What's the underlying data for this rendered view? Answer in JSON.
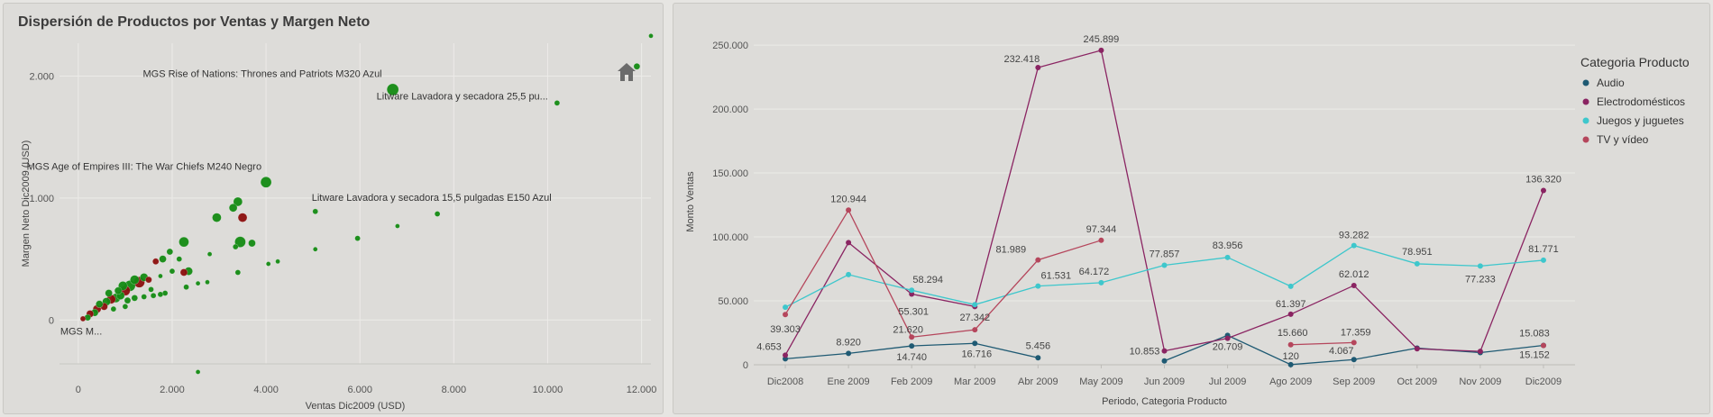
{
  "panels": {
    "scatter_title": "Dispersión de Productos por Ventas y Margen Neto",
    "line_title": ""
  },
  "chart_data": [
    {
      "type": "scatter",
      "title": "Dispersión de Productos por Ventas y Margen Neto",
      "xlabel": "Ventas Dic2009 (USD)",
      "ylabel": "Margen Neto Dic2009 (USD)",
      "xlim": [
        -400,
        12200
      ],
      "ylim": [
        -360,
        2270
      ],
      "xticks": [
        0,
        2000,
        4000,
        6000,
        8000,
        10000,
        12000
      ],
      "xtick_labels": [
        "0",
        "2.000",
        "4.000",
        "6.000",
        "8.000",
        "10.000",
        "12.000"
      ],
      "yticks": [
        0,
        1000,
        2000
      ],
      "ytick_labels": [
        "0",
        "1.000",
        "2.000"
      ],
      "colors": {
        "green": "#138a13",
        "red": "#8b0e0e"
      },
      "annotations": [
        {
          "text": "MGS Rise of Nations: Thrones and Patriots M320 Azul",
          "x": 6700,
          "y": 1890
        },
        {
          "text": "Litware Lavadora y secadora 25,5 pu...",
          "x": 10200,
          "y": 1780
        },
        {
          "text": "MGS Age of Empires III: The War Chiefs M240 Negro",
          "x": 4000,
          "y": 1130
        },
        {
          "text": "Litware Lavadora y secadora 15,5 pulgadas E150 Azul",
          "x": 5050,
          "y": 890
        },
        {
          "text": "MGS M...",
          "x": 0,
          "y": 0
        }
      ],
      "points": [
        {
          "x": 6700,
          "y": 1890,
          "s": 6.5,
          "c": "green"
        },
        {
          "x": 11900,
          "y": 2080,
          "s": 3.5,
          "c": "green"
        },
        {
          "x": 12200,
          "y": 2330,
          "s": 2.5,
          "c": "green"
        },
        {
          "x": 10200,
          "y": 1780,
          "s": 3,
          "c": "green"
        },
        {
          "x": 4000,
          "y": 1130,
          "s": 6,
          "c": "green"
        },
        {
          "x": 5050,
          "y": 890,
          "s": 3,
          "c": "green"
        },
        {
          "x": 7650,
          "y": 870,
          "s": 3,
          "c": "green"
        },
        {
          "x": 6800,
          "y": 770,
          "s": 2.5,
          "c": "green"
        },
        {
          "x": 5950,
          "y": 670,
          "s": 3,
          "c": "green"
        },
        {
          "x": 5050,
          "y": 580,
          "s": 2.5,
          "c": "green"
        },
        {
          "x": 4250,
          "y": 480,
          "s": 2.5,
          "c": "green"
        },
        {
          "x": 4050,
          "y": 460,
          "s": 2.5,
          "c": "green"
        },
        {
          "x": 3400,
          "y": 970,
          "s": 5,
          "c": "green"
        },
        {
          "x": 3300,
          "y": 920,
          "s": 4.5,
          "c": "green"
        },
        {
          "x": 3500,
          "y": 840,
          "s": 5,
          "c": "red"
        },
        {
          "x": 2950,
          "y": 840,
          "s": 5,
          "c": "green"
        },
        {
          "x": 3450,
          "y": 640,
          "s": 6,
          "c": "green"
        },
        {
          "x": 3700,
          "y": 630,
          "s": 4,
          "c": "green"
        },
        {
          "x": 3350,
          "y": 600,
          "s": 3,
          "c": "green"
        },
        {
          "x": 2250,
          "y": 640,
          "s": 5.5,
          "c": "green"
        },
        {
          "x": 1950,
          "y": 560,
          "s": 3.5,
          "c": "green"
        },
        {
          "x": 2150,
          "y": 500,
          "s": 3,
          "c": "green"
        },
        {
          "x": 2800,
          "y": 540,
          "s": 2.5,
          "c": "green"
        },
        {
          "x": 1800,
          "y": 500,
          "s": 4,
          "c": "green"
        },
        {
          "x": 1650,
          "y": 480,
          "s": 3.5,
          "c": "red"
        },
        {
          "x": 2350,
          "y": 400,
          "s": 4.5,
          "c": "green"
        },
        {
          "x": 2250,
          "y": 390,
          "s": 4,
          "c": "red"
        },
        {
          "x": 3400,
          "y": 390,
          "s": 3,
          "c": "green"
        },
        {
          "x": 2000,
          "y": 400,
          "s": 3,
          "c": "green"
        },
        {
          "x": 1750,
          "y": 360,
          "s": 2.5,
          "c": "green"
        },
        {
          "x": 2750,
          "y": 310,
          "s": 2.5,
          "c": "green"
        },
        {
          "x": 2550,
          "y": 300,
          "s": 2.5,
          "c": "green"
        },
        {
          "x": 2300,
          "y": 270,
          "s": 3,
          "c": "green"
        },
        {
          "x": 1850,
          "y": 220,
          "s": 3,
          "c": "green"
        },
        {
          "x": 1750,
          "y": 210,
          "s": 3,
          "c": "green"
        },
        {
          "x": 1600,
          "y": 200,
          "s": 3,
          "c": "green"
        },
        {
          "x": 1400,
          "y": 190,
          "s": 3,
          "c": "green"
        },
        {
          "x": 1500,
          "y": 330,
          "s": 3.5,
          "c": "red"
        },
        {
          "x": 1400,
          "y": 350,
          "s": 4.5,
          "c": "green"
        },
        {
          "x": 1300,
          "y": 310,
          "s": 6,
          "c": "red"
        },
        {
          "x": 1200,
          "y": 330,
          "s": 5,
          "c": "green"
        },
        {
          "x": 1100,
          "y": 280,
          "s": 6,
          "c": "green"
        },
        {
          "x": 1000,
          "y": 240,
          "s": 5.5,
          "c": "red"
        },
        {
          "x": 950,
          "y": 280,
          "s": 5,
          "c": "green"
        },
        {
          "x": 900,
          "y": 200,
          "s": 4.5,
          "c": "green"
        },
        {
          "x": 850,
          "y": 240,
          "s": 4,
          "c": "green"
        },
        {
          "x": 800,
          "y": 180,
          "s": 5,
          "c": "green"
        },
        {
          "x": 700,
          "y": 170,
          "s": 5,
          "c": "red"
        },
        {
          "x": 650,
          "y": 220,
          "s": 4,
          "c": "green"
        },
        {
          "x": 600,
          "y": 150,
          "s": 4.5,
          "c": "green"
        },
        {
          "x": 550,
          "y": 110,
          "s": 4,
          "c": "red"
        },
        {
          "x": 450,
          "y": 130,
          "s": 4,
          "c": "green"
        },
        {
          "x": 400,
          "y": 90,
          "s": 4.5,
          "c": "red"
        },
        {
          "x": 350,
          "y": 60,
          "s": 4,
          "c": "green"
        },
        {
          "x": 250,
          "y": 50,
          "s": 4,
          "c": "red"
        },
        {
          "x": 200,
          "y": 20,
          "s": 3.5,
          "c": "green"
        },
        {
          "x": 100,
          "y": 10,
          "s": 3,
          "c": "red"
        },
        {
          "x": 1200,
          "y": 180,
          "s": 3.5,
          "c": "green"
        },
        {
          "x": 1050,
          "y": 160,
          "s": 3.5,
          "c": "green"
        },
        {
          "x": 1550,
          "y": 250,
          "s": 3,
          "c": "green"
        },
        {
          "x": 750,
          "y": 90,
          "s": 3,
          "c": "green"
        },
        {
          "x": 1000,
          "y": 110,
          "s": 3,
          "c": "green"
        },
        {
          "x": 2550,
          "y": -800,
          "s": 2.5,
          "c": "green"
        }
      ]
    },
    {
      "type": "line",
      "title": "",
      "xlabel": "Periodo, Categoria Producto",
      "ylabel": "Monto Ventas",
      "categories": [
        "Dic2008",
        "Ene 2009",
        "Feb 2009",
        "Mar 2009",
        "Abr 2009",
        "May 2009",
        "Jun 2009",
        "Jul 2009",
        "Ago 2009",
        "Sep 2009",
        "Oct 2009",
        "Nov 2009",
        "Dic2009"
      ],
      "ylim": [
        0,
        255000
      ],
      "yticks": [
        0,
        50000,
        100000,
        150000,
        200000,
        250000
      ],
      "ytick_labels": [
        "0",
        "50.000",
        "100.000",
        "150.000",
        "200.000",
        "250.000"
      ],
      "legend": {
        "title": "Categoria Producto",
        "position": "right"
      },
      "series": [
        {
          "name": "Audio",
          "color": "#1f5a73",
          "values": [
            4653,
            8920,
            14740,
            16716,
            5456,
            null,
            3000,
            23000,
            120,
            4067,
            13000,
            9500,
            15152
          ]
        },
        {
          "name": "Electrodomésticos",
          "color": "#8a2462",
          "values": [
            7500,
            95500,
            55301,
            45500,
            232418,
            245899,
            10853,
            20709,
            39500,
            62012,
            12500,
            10500,
            136320
          ]
        },
        {
          "name": "Juegos y juguetes",
          "color": "#3ec7cc",
          "values": [
            45000,
            70500,
            58294,
            47000,
            61531,
            64172,
            77857,
            83956,
            61397,
            93282,
            78951,
            77233,
            81771
          ]
        },
        {
          "name": "TV y vídeo",
          "color": "#b5465c",
          "values": [
            39303,
            120944,
            21620,
            27342,
            81989,
            97344,
            null,
            null,
            15660,
            17359,
            null,
            null,
            15083
          ]
        }
      ],
      "data_labels": [
        {
          "text": "4.653",
          "cat": 0,
          "value": 4653
        },
        {
          "text": "39.303",
          "cat": 0,
          "value": 39303
        },
        {
          "text": "8.920",
          "cat": 1,
          "value": 8920
        },
        {
          "text": "120.944",
          "cat": 1,
          "value": 120944
        },
        {
          "text": "58.294",
          "cat": 2,
          "value": 58294
        },
        {
          "text": "55.301",
          "cat": 2,
          "value": 55301
        },
        {
          "text": "21.620",
          "cat": 2,
          "value": 21620
        },
        {
          "text": "14.740",
          "cat": 2,
          "value": 14740
        },
        {
          "text": "27.342",
          "cat": 3,
          "value": 27342
        },
        {
          "text": "16.716",
          "cat": 3,
          "value": 16716
        },
        {
          "text": "232.418",
          "cat": 4,
          "value": 232418
        },
        {
          "text": "81.989",
          "cat": 4,
          "value": 81989
        },
        {
          "text": "61.531",
          "cat": 4,
          "value": 61531
        },
        {
          "text": "5.456",
          "cat": 4,
          "value": 5456
        },
        {
          "text": "245.899",
          "cat": 5,
          "value": 245899
        },
        {
          "text": "97.344",
          "cat": 5,
          "value": 97344
        },
        {
          "text": "64.172",
          "cat": 5,
          "value": 64172
        },
        {
          "text": "77.857",
          "cat": 6,
          "value": 77857
        },
        {
          "text": "10.853",
          "cat": 6,
          "value": 10853
        },
        {
          "text": "83.956",
          "cat": 7,
          "value": 83956
        },
        {
          "text": "20.709",
          "cat": 7,
          "value": 20709
        },
        {
          "text": "61.397",
          "cat": 8,
          "value": 61397
        },
        {
          "text": "15.660",
          "cat": 8,
          "value": 15660
        },
        {
          "text": "120",
          "cat": 8,
          "value": 120
        },
        {
          "text": "93.282",
          "cat": 9,
          "value": 93282
        },
        {
          "text": "62.012",
          "cat": 9,
          "value": 62012
        },
        {
          "text": "17.359",
          "cat": 9,
          "value": 17359
        },
        {
          "text": "4.067",
          "cat": 9,
          "value": 4067
        },
        {
          "text": "78.951",
          "cat": 10,
          "value": 78951
        },
        {
          "text": "77.233",
          "cat": 11,
          "value": 77233
        },
        {
          "text": "136.320",
          "cat": 12,
          "value": 136320
        },
        {
          "text": "81.771",
          "cat": 12,
          "value": 81771
        },
        {
          "text": "15.083",
          "cat": 12,
          "value": 15083
        },
        {
          "text": "15.152",
          "cat": 12,
          "value": 15152
        }
      ]
    }
  ]
}
